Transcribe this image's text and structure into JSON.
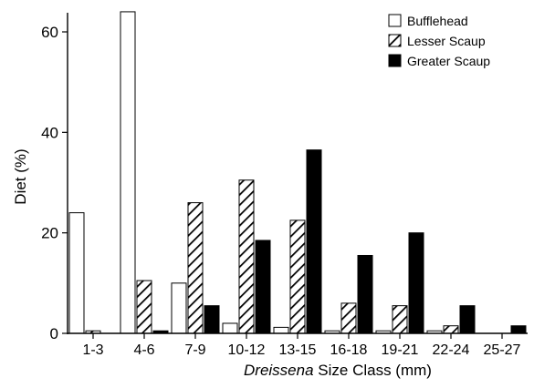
{
  "chart_data": {
    "type": "bar",
    "title": "",
    "xlabel": {
      "italic": "Dreissena",
      "rest": " Size Class (mm)"
    },
    "ylabel": "Diet (%)",
    "ylim": [
      0,
      65
    ],
    "yticks": [
      0,
      20,
      40,
      60
    ],
    "categories": [
      "1-3",
      "4-6",
      "7-9",
      "10-12",
      "13-15",
      "16-18",
      "19-21",
      "22-24",
      "25-27"
    ],
    "series": [
      {
        "name": "Bufflehead",
        "style": "open",
        "values": [
          24,
          64,
          10,
          2,
          1.2,
          0.5,
          0.5,
          0.5,
          0
        ]
      },
      {
        "name": "Lesser Scaup",
        "style": "hatched",
        "values": [
          0.5,
          10.5,
          26,
          30.5,
          22.5,
          6,
          5.5,
          1.5,
          0
        ]
      },
      {
        "name": "Greater Scaup",
        "style": "solid",
        "values": [
          0,
          0.5,
          5.5,
          18.5,
          36.5,
          15.5,
          20,
          5.5,
          1.5
        ]
      }
    ],
    "grid": false,
    "legend": "top-right",
    "colors": {
      "outline": "#000000",
      "fill_open": "#ffffff",
      "fill_solid": "#000000"
    }
  }
}
